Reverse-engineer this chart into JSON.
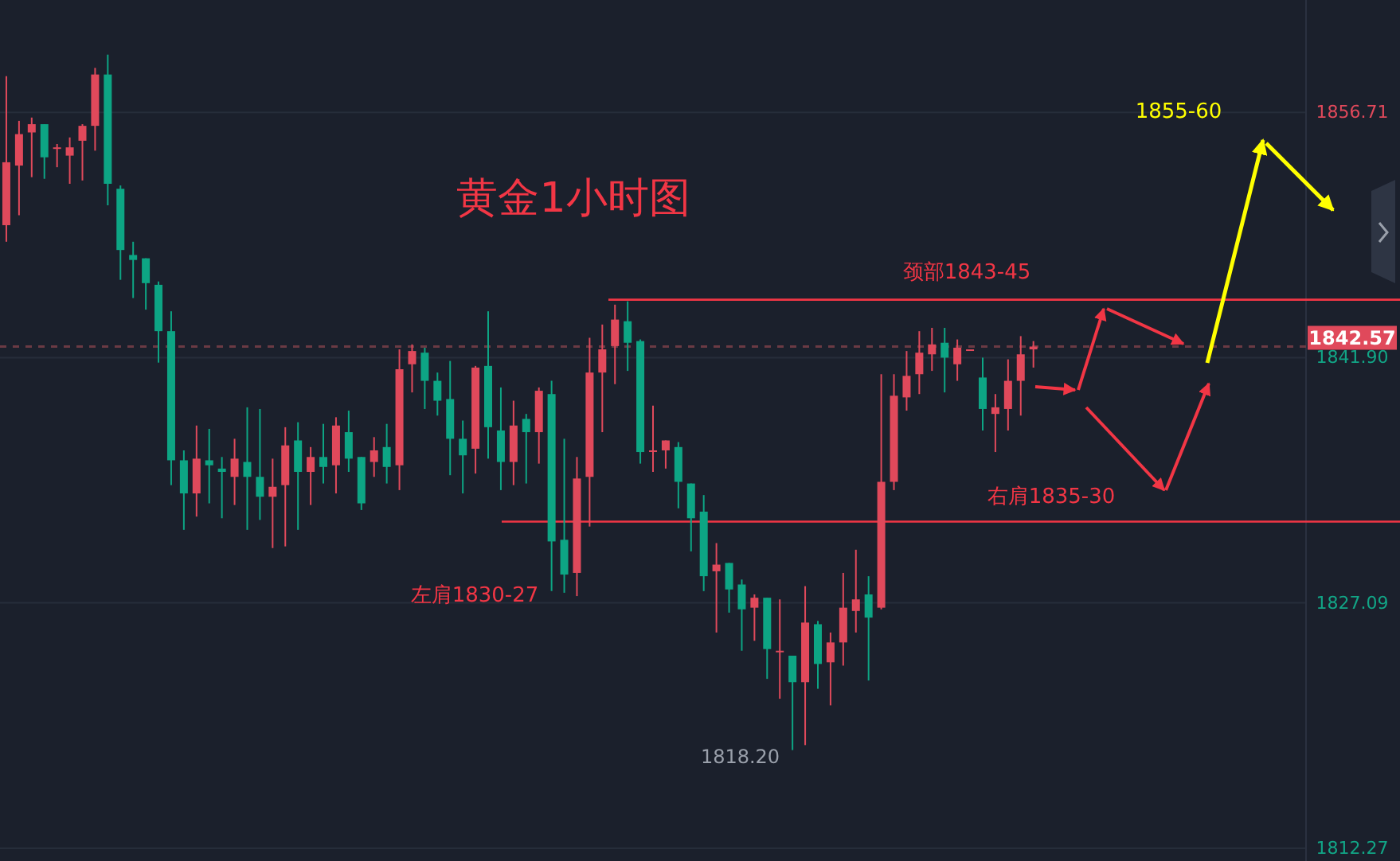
{
  "chart_data": {
    "type": "candlestick",
    "title": "黄金1小时图",
    "categories": [
      null,
      null,
      null,
      null,
      null,
      null,
      null,
      null,
      null,
      null,
      null,
      null,
      null,
      null,
      null,
      null,
      null,
      null,
      null,
      null,
      null,
      null,
      null,
      null,
      null,
      null,
      null,
      null,
      null,
      null,
      null,
      null,
      null,
      null,
      null,
      null,
      null,
      null,
      null,
      null,
      null,
      null,
      null,
      null,
      null,
      null,
      null,
      null,
      null,
      null,
      null,
      null,
      null,
      null,
      null,
      null,
      null,
      null,
      null,
      null,
      null,
      null,
      null,
      null,
      null,
      null,
      null,
      null,
      null,
      null,
      null,
      null,
      null,
      null,
      null,
      null,
      null,
      null,
      null,
      null,
      null,
      null,
      null,
      null,
      null,
      null,
      null,
      null,
      null,
      null,
      null,
      null,
      null,
      null,
      null,
      null,
      null,
      null,
      null,
      null,
      null,
      null,
      null
    ],
    "ohlc": [
      [
        1849.9,
        1858.9,
        1848.9,
        1853.7
      ],
      [
        1853.5,
        1856.2,
        1850.5,
        1855.4
      ],
      [
        1855.5,
        1856.4,
        1852.8,
        1856.0
      ],
      [
        1856.0,
        1856.0,
        1852.7,
        1854.0
      ],
      [
        1854.6,
        1854.8,
        1853.4,
        1854.6
      ],
      [
        1854.1,
        1855.2,
        1852.4,
        1854.6
      ],
      [
        1855.0,
        1856.0,
        1852.6,
        1855.9
      ],
      [
        1855.9,
        1859.4,
        1854.4,
        1859.0
      ],
      [
        1859.0,
        1860.2,
        1851.1,
        1852.4
      ],
      [
        1852.1,
        1852.3,
        1846.6,
        1848.4
      ],
      [
        1848.1,
        1848.9,
        1845.5,
        1847.8
      ],
      [
        1847.9,
        1847.9,
        1844.8,
        1846.4
      ],
      [
        1846.3,
        1846.5,
        1841.6,
        1843.5
      ],
      [
        1843.5,
        1844.7,
        1834.2,
        1835.7
      ],
      [
        1835.7,
        1836.3,
        1831.5,
        1833.7
      ],
      [
        1833.7,
        1837.8,
        1832.3,
        1835.8
      ],
      [
        1835.7,
        1837.6,
        1833.1,
        1835.4
      ],
      [
        1835.2,
        1835.9,
        1832.2,
        1835.0
      ],
      [
        1834.7,
        1837.0,
        1833.0,
        1835.8
      ],
      [
        1835.6,
        1838.9,
        1831.5,
        1834.7
      ],
      [
        1834.7,
        1838.8,
        1832.1,
        1833.5
      ],
      [
        1833.5,
        1835.8,
        1830.4,
        1834.1
      ],
      [
        1834.2,
        1837.7,
        1830.5,
        1836.6
      ],
      [
        1836.9,
        1838.0,
        1831.5,
        1835.0
      ],
      [
        1835.0,
        1836.5,
        1833.0,
        1835.9
      ],
      [
        1835.9,
        1837.9,
        1834.3,
        1835.3
      ],
      [
        1835.4,
        1838.3,
        1833.7,
        1837.8
      ],
      [
        1837.4,
        1838.7,
        1835.0,
        1835.8
      ],
      [
        1835.9,
        1835.9,
        1832.7,
        1833.1
      ],
      [
        1835.6,
        1837.1,
        1834.7,
        1836.3
      ],
      [
        1836.5,
        1837.9,
        1834.3,
        1835.3
      ],
      [
        1835.4,
        1842.4,
        1833.9,
        1841.2
      ],
      [
        1841.5,
        1842.7,
        1839.8,
        1842.3
      ],
      [
        1842.2,
        1842.5,
        1838.8,
        1840.5
      ],
      [
        1840.5,
        1841.0,
        1838.4,
        1839.3
      ],
      [
        1839.4,
        1841.7,
        1834.8,
        1837.0
      ],
      [
        1837.0,
        1838.1,
        1833.7,
        1836.0
      ],
      [
        1836.4,
        1841.4,
        1834.9,
        1841.3
      ],
      [
        1841.4,
        1844.7,
        1835.8,
        1837.7
      ],
      [
        1837.5,
        1840.1,
        1833.9,
        1835.6
      ],
      [
        1835.6,
        1839.3,
        1834.2,
        1837.8
      ],
      [
        1838.2,
        1838.5,
        1834.3,
        1837.4
      ],
      [
        1837.4,
        1840.1,
        1835.5,
        1839.9
      ],
      [
        1839.7,
        1840.5,
        1827.8,
        1830.8
      ],
      [
        1830.9,
        1837.0,
        1827.7,
        1828.8
      ],
      [
        1828.9,
        1835.9,
        1827.5,
        1834.6
      ],
      [
        1834.7,
        1843.1,
        1831.7,
        1841.0
      ],
      [
        1841.0,
        1843.9,
        1837.4,
        1842.4
      ],
      [
        1842.6,
        1845.1,
        1840.3,
        1844.2
      ],
      [
        1844.1,
        1845.3,
        1841.1,
        1842.8
      ],
      [
        1842.9,
        1843.0,
        1835.5,
        1836.2
      ],
      [
        1836.3,
        1839.0,
        1835.0,
        1836.3
      ],
      [
        1836.3,
        1836.9,
        1835.2,
        1836.9
      ],
      [
        1836.5,
        1836.8,
        1832.8,
        1834.4
      ],
      [
        1834.3,
        1834.3,
        1830.2,
        1832.2
      ],
      [
        1832.6,
        1833.6,
        1827.8,
        1828.7
      ],
      [
        1829.0,
        1830.7,
        1825.3,
        1829.4
      ],
      [
        1829.5,
        1829.5,
        1826.5,
        1827.9
      ],
      [
        1828.2,
        1828.5,
        1824.2,
        1826.7
      ],
      [
        1826.8,
        1827.6,
        1824.8,
        1827.4
      ],
      [
        1827.4,
        1827.4,
        1822.5,
        1824.3
      ],
      [
        1824.2,
        1827.3,
        1821.3,
        1824.2
      ],
      [
        1823.9,
        1823.9,
        1818.2,
        1822.3
      ],
      [
        1822.3,
        1828.1,
        1818.5,
        1825.9
      ],
      [
        1825.8,
        1826.0,
        1821.9,
        1823.4
      ],
      [
        1823.5,
        1825.3,
        1820.9,
        1824.7
      ],
      [
        1824.7,
        1828.9,
        1823.3,
        1826.8
      ],
      [
        1826.6,
        1830.3,
        1825.3,
        1827.3
      ],
      [
        1827.6,
        1828.7,
        1822.4,
        1826.2
      ],
      [
        1826.8,
        1840.9,
        1826.7,
        1834.4
      ],
      [
        1834.4,
        1840.9,
        1833.9,
        1839.6
      ],
      [
        1839.5,
        1842.3,
        1838.7,
        1840.8
      ],
      [
        1840.9,
        1843.5,
        1839.7,
        1842.2
      ],
      [
        1842.1,
        1843.7,
        1841.1,
        1842.7
      ],
      [
        1842.8,
        1843.7,
        1839.8,
        1841.9
      ],
      [
        1841.5,
        1843.0,
        1840.5,
        1842.5
      ],
      [
        1842.4,
        1842.4,
        1842.4,
        1842.4
      ],
      [
        1840.7,
        1841.9,
        1837.5,
        1838.8
      ],
      [
        1838.5,
        1839.7,
        1836.2,
        1838.9
      ],
      [
        1838.8,
        1841.8,
        1837.5,
        1840.5
      ],
      [
        1840.5,
        1843.2,
        1838.4,
        1842.1
      ],
      [
        1842.4,
        1842.9,
        1841.3,
        1842.57
      ],
      null,
      null,
      null,
      null,
      null,
      null,
      null,
      null,
      null,
      null,
      null,
      null,
      null,
      null,
      null,
      null,
      null,
      null,
      null,
      null,
      null
    ],
    "ylim": [
      1811.5,
      1863.5
    ],
    "yticks": [
      1812.27,
      1827.09,
      {
        "value": 1841.9,
        "label": "1841.90"
      },
      1856.71
    ],
    "grid": "y",
    "tick_labels": "y",
    "ref_lines": [
      {
        "axis": "y",
        "value": 1842.57,
        "label": "1842.57",
        "line_style": "dashed",
        "color": "#6b3a44"
      },
      {
        "axis": "y",
        "value": 1845.4,
        "label": null,
        "color": "#f23645"
      },
      {
        "axis": "y",
        "value": 1832.0,
        "label": null,
        "color": "#f23645"
      }
    ],
    "annotations": [
      "颈部1843-45",
      "左肩1830-27",
      "右肩1835-30",
      "1855-60",
      "1818.20"
    ]
  }
}
